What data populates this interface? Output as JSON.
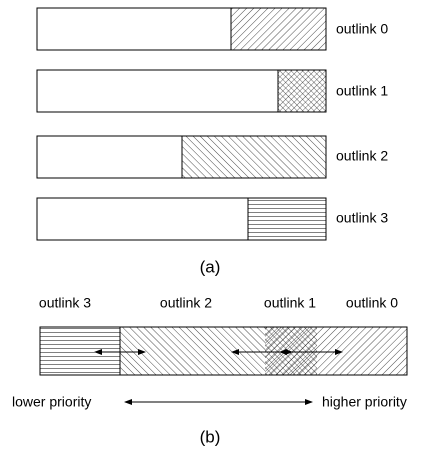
{
  "bars": [
    {
      "label": "outlink 0"
    },
    {
      "label": "outlink 1"
    },
    {
      "label": "outlink 2"
    },
    {
      "label": "outlink 3"
    }
  ],
  "caption_a": "(a)",
  "segments": [
    {
      "label": "outlink 3"
    },
    {
      "label": "outlink 2"
    },
    {
      "label": "outlink 1"
    },
    {
      "label": "outlink 0"
    }
  ],
  "axis": {
    "left": "lower priority",
    "right": "higher priority"
  },
  "caption_b": "(b)"
}
